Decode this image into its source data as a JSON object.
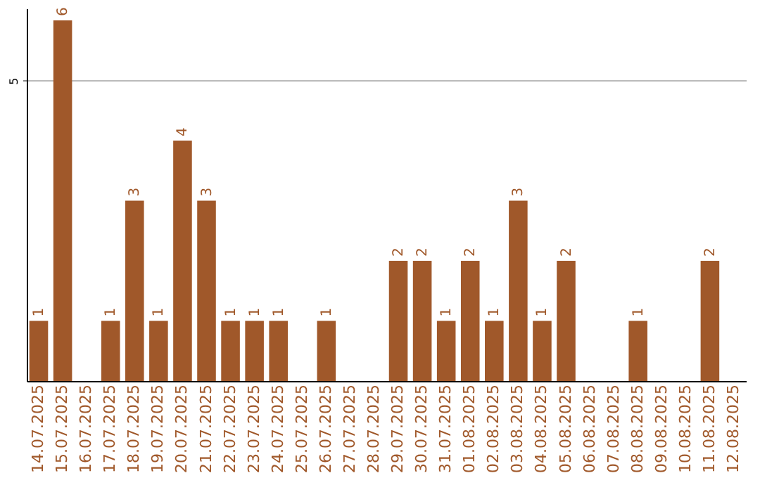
{
  "chart_data": {
    "type": "bar",
    "categories": [
      "14.07.2025",
      "15.07.2025",
      "16.07.2025",
      "17.07.2025",
      "18.07.2025",
      "19.07.2025",
      "20.07.2025",
      "21.07.2025",
      "22.07.2025",
      "23.07.2025",
      "24.07.2025",
      "25.07.2025",
      "26.07.2025",
      "27.07.2025",
      "28.07.2025",
      "29.07.2025",
      "30.07.2025",
      "31.07.2025",
      "01.08.2025",
      "02.08.2025",
      "03.08.2025",
      "04.08.2025",
      "05.08.2025",
      "06.08.2025",
      "07.08.2025",
      "08.08.2025",
      "09.08.2025",
      "10.08.2025",
      "11.08.2025",
      "12.08.2025"
    ],
    "values": [
      1,
      6,
      0,
      1,
      3,
      1,
      4,
      3,
      1,
      1,
      1,
      0,
      1,
      0,
      0,
      2,
      2,
      1,
      2,
      1,
      3,
      1,
      2,
      0,
      0,
      1,
      0,
      0,
      2,
      0
    ],
    "value_labels": [
      "1",
      "6",
      null,
      "1",
      "3",
      "1",
      "4",
      "3",
      "1",
      "1",
      "1",
      null,
      "1",
      null,
      null,
      "2",
      "2",
      "1",
      "2",
      "1",
      "3",
      "1",
      "2",
      null,
      null,
      "1",
      null,
      null,
      "2",
      null
    ],
    "color": "#a0582a",
    "ylim": [
      0,
      6.2
    ],
    "yticks": [
      5
    ],
    "grid": "y"
  }
}
